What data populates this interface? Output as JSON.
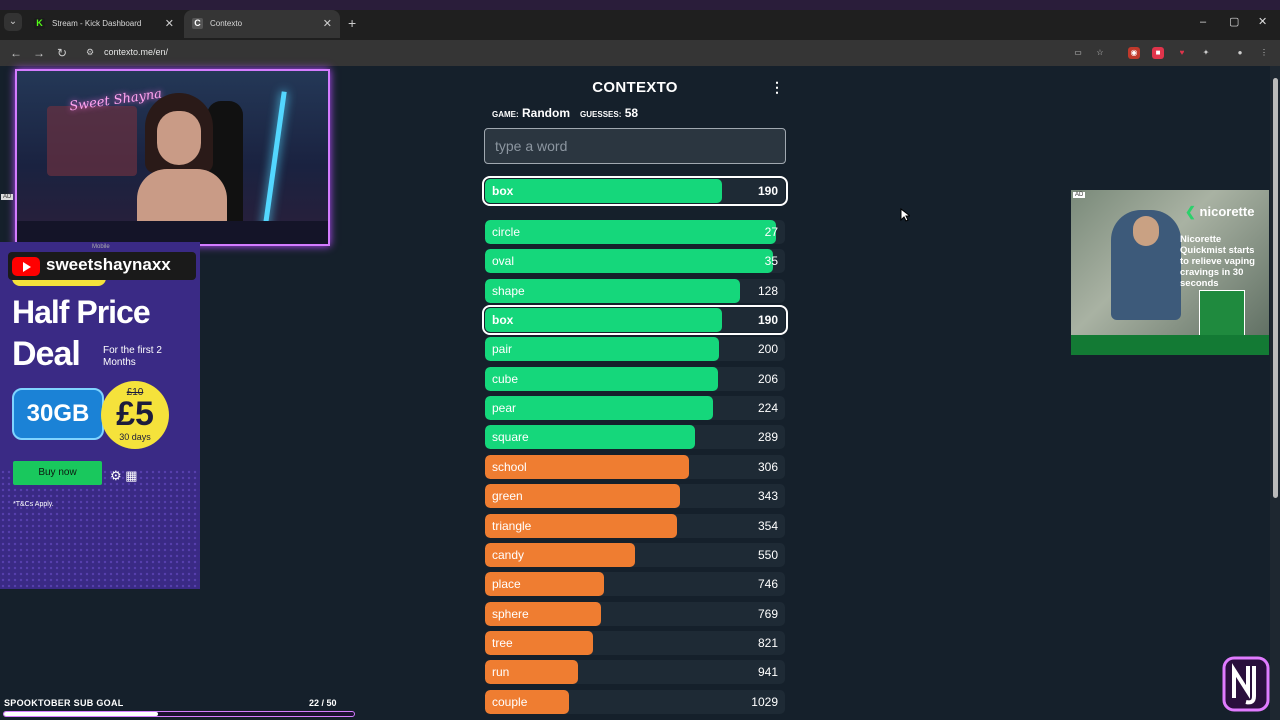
{
  "browser": {
    "tabs": [
      {
        "label": "Stream - Kick Dashboard",
        "favicon": "K",
        "active": false
      },
      {
        "label": "Contexto",
        "favicon": "C",
        "active": true
      }
    ],
    "url": "contexto.me/en/",
    "window_controls": [
      "–",
      "▢",
      "✕"
    ]
  },
  "game": {
    "title": "CONTEXTO",
    "game_label": "GAME:",
    "game_value": "Random",
    "guesses_label": "GUESSES:",
    "guesses_value": "58",
    "input_placeholder": "type a word",
    "last_guess": {
      "word": "box",
      "rank": "190",
      "fill": 0.79
    },
    "guesses": [
      {
        "word": "circle",
        "rank": "27",
        "fill": 0.97,
        "color": "#15d77b"
      },
      {
        "word": "oval",
        "rank": "35",
        "fill": 0.96,
        "color": "#15d77b"
      },
      {
        "word": "shape",
        "rank": "128",
        "fill": 0.85,
        "color": "#15d77b"
      },
      {
        "word": "box",
        "rank": "190",
        "fill": 0.79,
        "color": "#15d77b",
        "highlight": true
      },
      {
        "word": "pair",
        "rank": "200",
        "fill": 0.78,
        "color": "#15d77b"
      },
      {
        "word": "cube",
        "rank": "206",
        "fill": 0.775,
        "color": "#15d77b"
      },
      {
        "word": "pear",
        "rank": "224",
        "fill": 0.76,
        "color": "#15d77b"
      },
      {
        "word": "square",
        "rank": "289",
        "fill": 0.7,
        "color": "#15d77b"
      },
      {
        "word": "school",
        "rank": "306",
        "fill": 0.68,
        "color": "#ef7d31"
      },
      {
        "word": "green",
        "rank": "343",
        "fill": 0.65,
        "color": "#ef7d31"
      },
      {
        "word": "triangle",
        "rank": "354",
        "fill": 0.64,
        "color": "#ef7d31"
      },
      {
        "word": "candy",
        "rank": "550",
        "fill": 0.5,
        "color": "#ef7d31"
      },
      {
        "word": "place",
        "rank": "746",
        "fill": 0.395,
        "color": "#ef7d31"
      },
      {
        "word": "sphere",
        "rank": "769",
        "fill": 0.385,
        "color": "#ef7d31"
      },
      {
        "word": "tree",
        "rank": "821",
        "fill": 0.36,
        "color": "#ef7d31"
      },
      {
        "word": "run",
        "rank": "941",
        "fill": 0.31,
        "color": "#ef7d31"
      },
      {
        "word": "couple",
        "rank": "1029",
        "fill": 0.28,
        "color": "#ef7d31"
      }
    ]
  },
  "overlay": {
    "webcam_sign": "Sweet Shayna",
    "youtube_handle": "sweetshaynaxx",
    "goal_label": "SPOOKTOBER SUB GOAL",
    "goal_current": 22,
    "goal_total": 50,
    "goal_text": "22 / 50"
  },
  "ad_left": {
    "tag": "AD",
    "mobile": "Mobile",
    "headline1": "Half Price",
    "headline2": "Deal",
    "subline": "For the first 2 Months",
    "data": "30GB",
    "old_price": "£10",
    "new_price": "£5",
    "days": "30 days",
    "cta": "Buy now",
    "terms": "*T&Cs Apply."
  },
  "ad_right": {
    "tag": "AD",
    "brand": "nicorette",
    "copy": "Nicorette Quickmist starts to relieve vaping cravings in 30 seconds"
  },
  "colors": {
    "page_bg": "#15202b",
    "close": "#15d77b",
    "warm": "#ef7d31",
    "overlay_accent": "#d47cff"
  }
}
